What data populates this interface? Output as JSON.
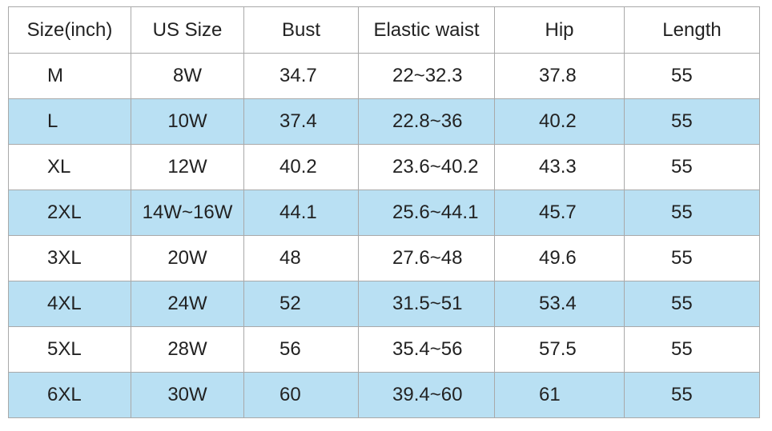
{
  "table": {
    "header": [
      "Size(inch)",
      "US Size",
      "Bust",
      "Elastic waist",
      "Hip",
      "Length"
    ],
    "rows": [
      [
        "M",
        "8W",
        "34.7",
        "22~32.3",
        "37.8",
        "55"
      ],
      [
        "L",
        "10W",
        "37.4",
        "22.8~36",
        "40.2",
        "55"
      ],
      [
        "XL",
        "12W",
        "40.2",
        "23.6~40.2",
        "43.3",
        "55"
      ],
      [
        "2XL",
        "14W~16W",
        "44.1",
        "25.6~44.1",
        "45.7",
        "55"
      ],
      [
        "3XL",
        "20W",
        "48",
        "27.6~48",
        "49.6",
        "55"
      ],
      [
        "4XL",
        "24W",
        "52",
        "31.5~51",
        "53.4",
        "55"
      ],
      [
        "5XL",
        "28W",
        "56",
        "35.4~56",
        "57.5",
        "55"
      ],
      [
        "6XL",
        "30W",
        "60",
        "39.4~60",
        "61",
        "55"
      ]
    ]
  }
}
